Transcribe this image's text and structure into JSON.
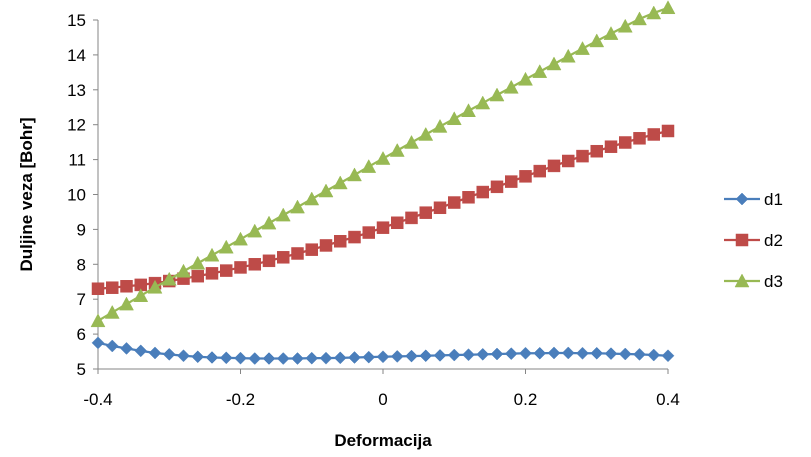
{
  "chart_data": {
    "type": "line",
    "title": "",
    "xlabel": "Deformacija",
    "ylabel": "Duljine veza [Bohr]",
    "xlim": [
      -0.4,
      0.4
    ],
    "ylim": [
      5,
      15
    ],
    "x_ticks": [
      -0.4,
      -0.2,
      0,
      0.2,
      0.4
    ],
    "x_tick_labels": [
      "-0.4",
      "-0.2",
      "0",
      "0.2",
      "0.4"
    ],
    "y_ticks": [
      5,
      6,
      7,
      8,
      9,
      10,
      11,
      12,
      13,
      14,
      15
    ],
    "y_tick_labels": [
      "5",
      "6",
      "7",
      "8",
      "9",
      "10",
      "11",
      "12",
      "13",
      "14",
      "15"
    ],
    "grid": false,
    "legend_position": "right",
    "x": [
      -0.4,
      -0.38,
      -0.36,
      -0.34,
      -0.32,
      -0.3,
      -0.28,
      -0.26,
      -0.24,
      -0.22,
      -0.2,
      -0.18,
      -0.16,
      -0.14,
      -0.12,
      -0.1,
      -0.08,
      -0.06,
      -0.04,
      -0.02,
      0,
      0.02,
      0.04,
      0.06,
      0.08,
      0.1,
      0.12,
      0.14,
      0.16,
      0.18,
      0.2,
      0.22,
      0.24,
      0.26,
      0.28,
      0.3,
      0.32,
      0.34,
      0.36,
      0.38,
      0.4
    ],
    "series": [
      {
        "name": "d1",
        "color": "#4a7ebb",
        "marker": "diamond",
        "values": [
          5.75,
          5.66,
          5.59,
          5.52,
          5.46,
          5.42,
          5.38,
          5.35,
          5.33,
          5.32,
          5.31,
          5.3,
          5.3,
          5.3,
          5.3,
          5.31,
          5.31,
          5.32,
          5.33,
          5.34,
          5.35,
          5.36,
          5.37,
          5.38,
          5.39,
          5.4,
          5.41,
          5.42,
          5.43,
          5.44,
          5.45,
          5.45,
          5.46,
          5.46,
          5.45,
          5.45,
          5.44,
          5.43,
          5.42,
          5.4,
          5.38
        ]
      },
      {
        "name": "d2",
        "color": "#be4b48",
        "marker": "square",
        "values": [
          7.3,
          7.33,
          7.37,
          7.41,
          7.46,
          7.52,
          7.59,
          7.66,
          7.74,
          7.82,
          7.91,
          8.0,
          8.1,
          8.2,
          8.31,
          8.42,
          8.54,
          8.66,
          8.78,
          8.91,
          9.05,
          9.19,
          9.33,
          9.48,
          9.62,
          9.77,
          9.92,
          10.07,
          10.22,
          10.37,
          10.52,
          10.67,
          10.82,
          10.96,
          11.1,
          11.24,
          11.37,
          11.49,
          11.61,
          11.72,
          11.82
        ]
      },
      {
        "name": "d3",
        "color": "#98b954",
        "marker": "triangle",
        "values": [
          6.38,
          6.62,
          6.86,
          7.1,
          7.34,
          7.57,
          7.8,
          8.03,
          8.26,
          8.49,
          8.72,
          8.95,
          9.18,
          9.41,
          9.64,
          9.87,
          10.1,
          10.33,
          10.56,
          10.8,
          11.03,
          11.26,
          11.49,
          11.72,
          11.95,
          12.17,
          12.4,
          12.62,
          12.85,
          13.07,
          13.3,
          13.52,
          13.74,
          13.96,
          14.18,
          14.4,
          14.61,
          14.82,
          15.03,
          15.2,
          15.35
        ]
      }
    ]
  }
}
